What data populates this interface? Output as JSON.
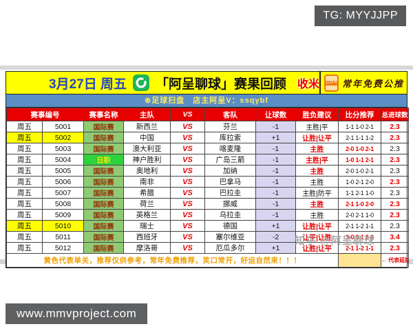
{
  "page": {
    "tg_badge": "TG: MYYJJPP",
    "website": "www.mmvproject.com",
    "watermark": "知乎 @阿呈聊球"
  },
  "title_bar": {
    "date": "3月27日 周五",
    "logo_icon": "green-soccer-scan-logo",
    "title": "「阿呈聊球」赛果回顾",
    "shoumi": "收米",
    "oa_icon_label": "公众号",
    "promo": "常年免费公推"
  },
  "subtitle_bar": {
    "text": "⊛足球扫盘　店主阿呈V：ssqybf"
  },
  "table": {
    "vs": "VS",
    "headers": [
      {
        "label": "赛事编号",
        "colspan": 2
      },
      {
        "label": "赛事名称"
      },
      {
        "label": "主队"
      },
      {
        "label": "VS",
        "vs": true
      },
      {
        "label": "客队"
      },
      {
        "label": "让球数"
      },
      {
        "label": "胜负建议"
      },
      {
        "label": "比分推荐"
      },
      {
        "label": "总进球数"
      }
    ],
    "rows": [
      {
        "day": "周五",
        "id": "5001",
        "league": "国际赛",
        "league_alt": false,
        "home": "新西兰",
        "away": "芬兰",
        "handicap": "-1",
        "advice": "主胜|平",
        "advice_red": false,
        "scores": "1-1 1-0 2-1",
        "scores_red": false,
        "goals": "2.3",
        "goals_red": true,
        "highlight": false
      },
      {
        "day": "周五",
        "id": "5002",
        "league": "国际赛",
        "league_alt": false,
        "home": "中国",
        "away": "库拉索",
        "handicap": "+1",
        "advice": "让胜|让平",
        "advice_red": true,
        "scores": "2-1 1-1 1-2",
        "scores_red": false,
        "goals": "2.3",
        "goals_red": true,
        "highlight": true
      },
      {
        "day": "周五",
        "id": "5003",
        "league": "国际赛",
        "league_alt": false,
        "home": "澳大利亚",
        "away": "喀麦隆",
        "handicap": "-1",
        "advice": "主胜",
        "advice_red": true,
        "scores": "2-0 1-0 2-1",
        "scores_red": true,
        "goals": "2.3",
        "goals_red": false,
        "highlight": false
      },
      {
        "day": "周五",
        "id": "5004",
        "league": "日职",
        "league_alt": true,
        "home": "神户胜利",
        "away": "广岛三箭",
        "handicap": "-1",
        "advice": "主胜|平",
        "advice_red": true,
        "scores": "1-0 1-1 2-1",
        "scores_red": true,
        "goals": "2.3",
        "goals_red": true,
        "highlight": false
      },
      {
        "day": "周五",
        "id": "5005",
        "league": "国际赛",
        "league_alt": false,
        "home": "奥地利",
        "away": "加纳",
        "handicap": "-1",
        "advice": "主胜",
        "advice_red": true,
        "scores": "2-0 1-0 2-1",
        "scores_red": false,
        "goals": "2.3",
        "goals_red": false,
        "highlight": false
      },
      {
        "day": "周五",
        "id": "5006",
        "league": "国际赛",
        "league_alt": false,
        "home": "南非",
        "away": "巴拿马",
        "handicap": "-1",
        "advice": "主胜",
        "advice_red": false,
        "scores": "1-0 2-1 2-0",
        "scores_red": false,
        "goals": "2.3",
        "goals_red": true,
        "highlight": false
      },
      {
        "day": "周五",
        "id": "5007",
        "league": "国际赛",
        "league_alt": false,
        "home": "希腊",
        "away": "巴拉圭",
        "handicap": "-1",
        "advice": "主胜|防平",
        "advice_red": false,
        "scores": "1-1 2-1 1-0",
        "scores_red": false,
        "goals": "2.3",
        "goals_red": false,
        "highlight": false
      },
      {
        "day": "周五",
        "id": "5008",
        "league": "国际赛",
        "league_alt": false,
        "home": "荷兰",
        "away": "挪威",
        "handicap": "-1",
        "advice": "主胜",
        "advice_red": true,
        "scores": "2-1 1-0 2-0",
        "scores_red": true,
        "goals": "2.3",
        "goals_red": true,
        "highlight": false
      },
      {
        "day": "周五",
        "id": "5009",
        "league": "国际赛",
        "league_alt": false,
        "home": "英格兰",
        "away": "乌拉圭",
        "handicap": "-1",
        "advice": "主胜",
        "advice_red": false,
        "scores": "2-0 2-1 1-0",
        "scores_red": false,
        "goals": "2.3",
        "goals_red": true,
        "highlight": false
      },
      {
        "day": "周五",
        "id": "5010",
        "league": "国际赛",
        "league_alt": false,
        "home": "瑞士",
        "away": "德国",
        "handicap": "+1",
        "advice": "让胜|让平",
        "advice_red": true,
        "scores": "2-1 1-2 1-1",
        "scores_red": false,
        "goals": "2.3",
        "goals_red": false,
        "highlight": true
      },
      {
        "day": "周五",
        "id": "5011",
        "league": "国际赛",
        "league_alt": false,
        "home": "西班牙",
        "away": "塞尔维亚",
        "handicap": "-2",
        "advice": "让平|让胜",
        "advice_red": true,
        "scores": "3-0 3-1 2-0",
        "scores_red": true,
        "goals": "3.4",
        "goals_red": true,
        "highlight": false
      },
      {
        "day": "周五",
        "id": "5012",
        "league": "国际赛",
        "league_alt": false,
        "home": "摩洛哥",
        "away": "厄瓜多尔",
        "handicap": "+1",
        "advice": "让胜|让平",
        "advice_red": true,
        "scores": "2-1 1-2 1-1",
        "scores_red": true,
        "goals": "2.3",
        "goals_red": true,
        "highlight": false
      }
    ]
  },
  "footer": {
    "note": "黄色代表单关，推荐仅供参考，常年免费推荐，笑口常开，好运自然来！！！",
    "legend": "← 代表延期"
  },
  "colors": {
    "accent_red": "#e60000",
    "highlight_yellow": "#ffff00",
    "subbar_blue": "#5b8ec4",
    "league_green": "#90cb74",
    "league_alt_green": "#2fd13f",
    "handicap_lavender": "#d9d5f0",
    "legend_swatch": "#ffe493",
    "note_orange": "#f0a000"
  }
}
